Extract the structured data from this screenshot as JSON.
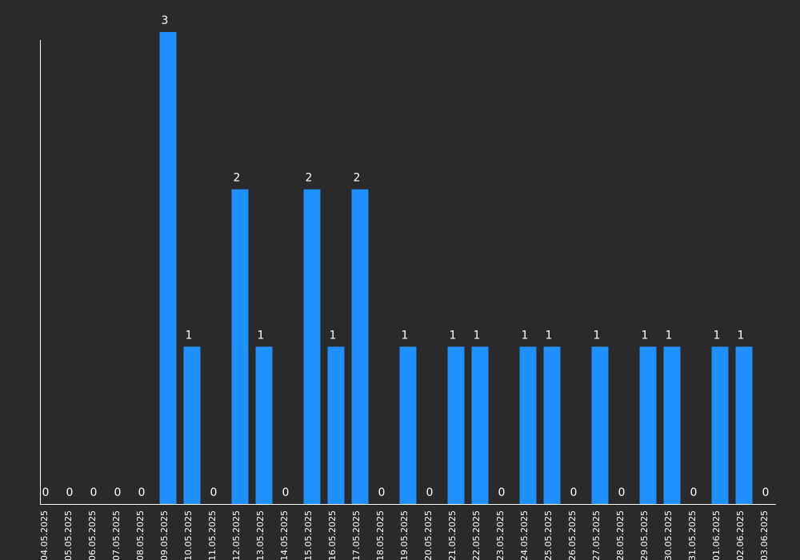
{
  "colors": {
    "background": "#2a2a2a",
    "bar": "#1e90ff",
    "axis": "#ffffff",
    "text": "#ffffff"
  },
  "chart_data": {
    "type": "bar",
    "title": "",
    "xlabel": "",
    "ylabel": "",
    "ylim": [
      0,
      3
    ],
    "grid": false,
    "categories": [
      "04.05.2025",
      "05.05.2025",
      "06.05.2025",
      "07.05.2025",
      "08.05.2025",
      "09.05.2025",
      "10.05.2025",
      "11.05.2025",
      "12.05.2025",
      "13.05.2025",
      "14.05.2025",
      "15.05.2025",
      "16.05.2025",
      "17.05.2025",
      "18.05.2025",
      "19.05.2025",
      "20.05.2025",
      "21.05.2025",
      "22.05.2025",
      "23.05.2025",
      "24.05.2025",
      "25.05.2025",
      "26.05.2025",
      "27.05.2025",
      "28.05.2025",
      "29.05.2025",
      "30.05.2025",
      "31.05.2025",
      "01.06.2025",
      "02.06.2025",
      "03.06.2025"
    ],
    "values": [
      0,
      0,
      0,
      0,
      0,
      3,
      1,
      0,
      2,
      1,
      0,
      2,
      1,
      2,
      0,
      1,
      0,
      1,
      1,
      0,
      1,
      1,
      0,
      1,
      0,
      1,
      1,
      0,
      1,
      1,
      0
    ]
  }
}
